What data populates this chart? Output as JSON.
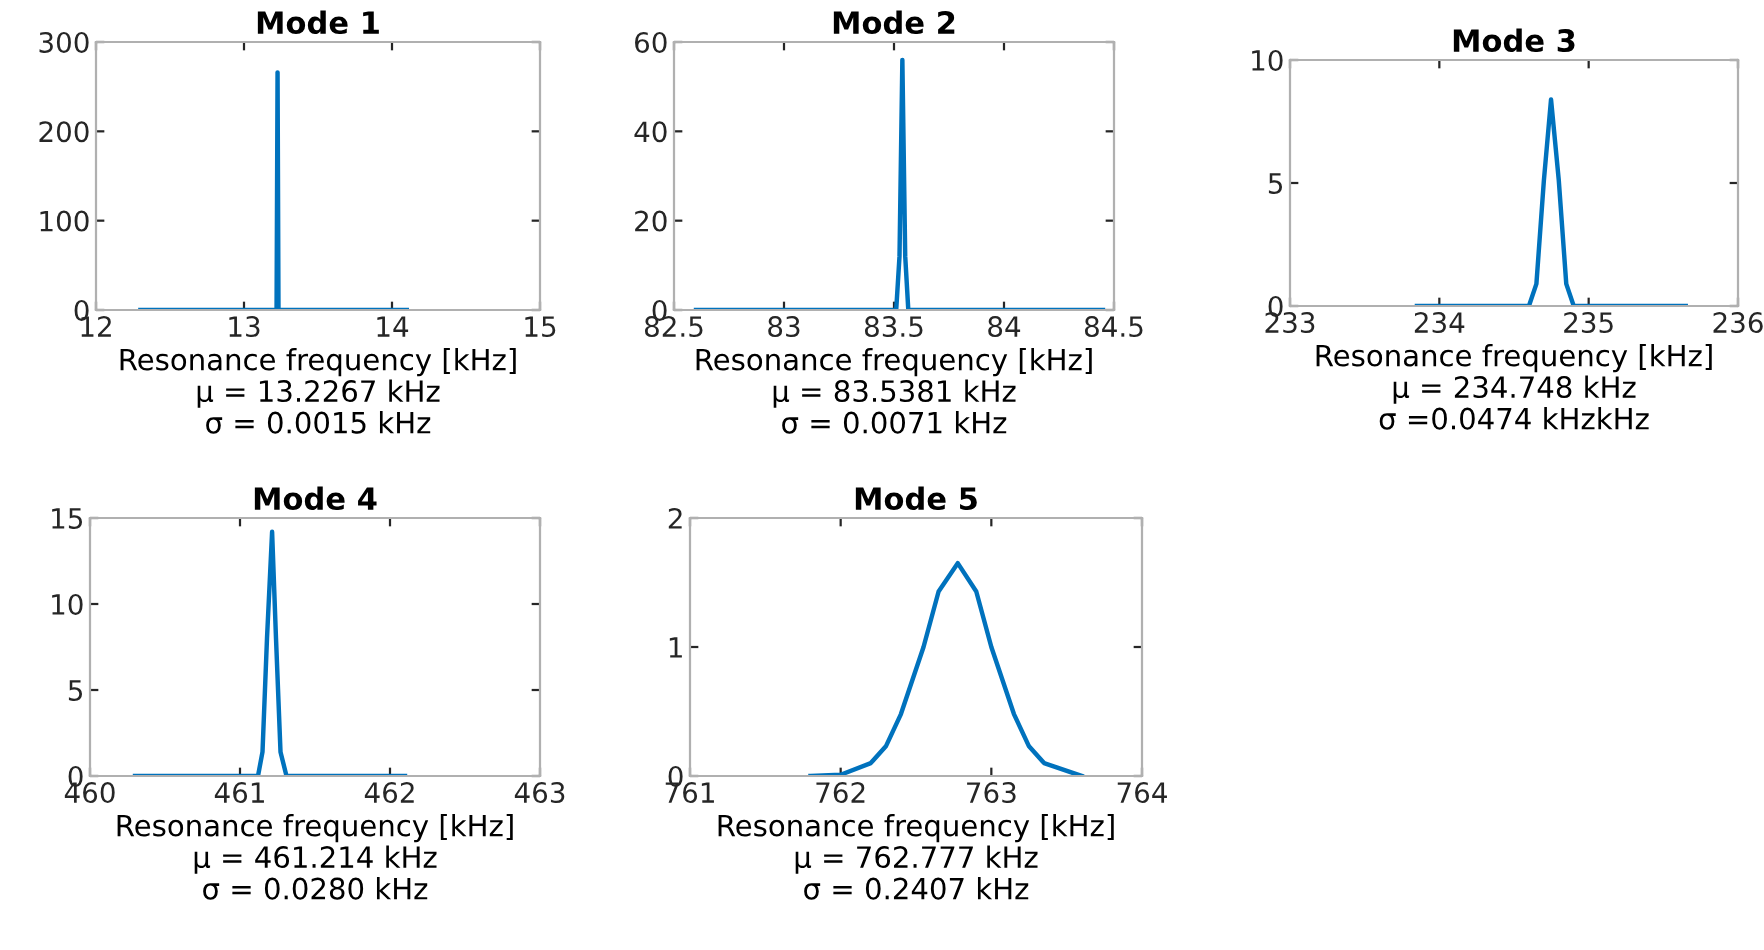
{
  "chart_data": [
    {
      "type": "line",
      "title": "Mode 1",
      "xlabel": "Resonance frequency [kHz]\nμ = 13.2267 kHz\nσ = 0.0015 kHz",
      "xlim": [
        12,
        15
      ],
      "xticks": [
        12,
        13,
        14,
        15
      ],
      "ylim": [
        0,
        300
      ],
      "yticks": [
        0,
        100,
        200,
        300
      ],
      "grid": false,
      "series": [
        {
          "color": "#0072bd",
          "x": [
            12.3,
            13.22,
            13.2267,
            13.233,
            14.1
          ],
          "values": [
            0,
            0,
            266,
            0,
            0
          ]
        }
      ]
    },
    {
      "type": "line",
      "title": "Mode 2",
      "xlabel": "Resonance frequency [kHz]\nμ = 83.5381 kHz\nσ = 0.0071 kHz",
      "xlim": [
        82.5,
        84.5
      ],
      "xticks": [
        82.5,
        83,
        83.5,
        84,
        84.5
      ],
      "ylim": [
        0,
        60
      ],
      "yticks": [
        0,
        20,
        40,
        60
      ],
      "grid": false,
      "series": [
        {
          "color": "#0072bd",
          "x": [
            82.6,
            83.51,
            83.525,
            83.538,
            83.551,
            83.565,
            84.45
          ],
          "values": [
            0,
            0,
            12,
            56,
            12,
            0,
            0
          ]
        }
      ]
    },
    {
      "type": "line",
      "title": "Mode 3",
      "xlabel": "Resonance frequency [kHz]\nμ = 234.748 kHz\nσ =0.0474 kHzkHz",
      "xlim": [
        233,
        236
      ],
      "xticks": [
        233,
        234,
        235,
        236
      ],
      "ylim": [
        0,
        10
      ],
      "yticks": [
        0,
        5,
        10
      ],
      "grid": false,
      "series": [
        {
          "color": "#0072bd",
          "x": [
            233.85,
            234.6,
            234.65,
            234.7,
            234.748,
            234.8,
            234.85,
            234.9,
            235.65
          ],
          "values": [
            0,
            0,
            0.9,
            5.1,
            8.4,
            5.1,
            0.9,
            0,
            0
          ]
        }
      ]
    },
    {
      "type": "line",
      "title": "Mode 4",
      "xlabel": "Resonance frequency [kHz]\nμ = 461.214 kHz\nσ = 0.0280 kHz",
      "xlim": [
        460,
        463
      ],
      "xticks": [
        460,
        461,
        462,
        463
      ],
      "ylim": [
        0,
        15
      ],
      "yticks": [
        0,
        5,
        10,
        15
      ],
      "grid": false,
      "series": [
        {
          "color": "#0072bd",
          "x": [
            460.3,
            461.12,
            461.15,
            461.18,
            461.214,
            461.24,
            461.27,
            461.31,
            462.1
          ],
          "values": [
            0,
            0,
            1.4,
            8,
            14.2,
            8,
            1.4,
            0,
            0
          ]
        }
      ]
    },
    {
      "type": "line",
      "title": "Mode 5",
      "xlabel": "Resonance frequency [kHz]\nμ = 762.777 kHz\nσ = 0.2407 kHz",
      "xlim": [
        761,
        764
      ],
      "xticks": [
        761,
        762,
        763,
        764
      ],
      "ylim": [
        0,
        2
      ],
      "yticks": [
        0,
        1,
        2
      ],
      "grid": false,
      "series": [
        {
          "color": "#0072bd",
          "x": [
            761.8,
            762.0,
            762.2,
            762.3,
            762.4,
            762.55,
            762.65,
            762.777,
            762.9,
            763.0,
            763.15,
            763.25,
            763.35,
            763.6
          ],
          "values": [
            0,
            0.01,
            0.1,
            0.23,
            0.48,
            1.0,
            1.43,
            1.65,
            1.43,
            1.0,
            0.48,
            0.23,
            0.1,
            0
          ]
        }
      ]
    }
  ]
}
